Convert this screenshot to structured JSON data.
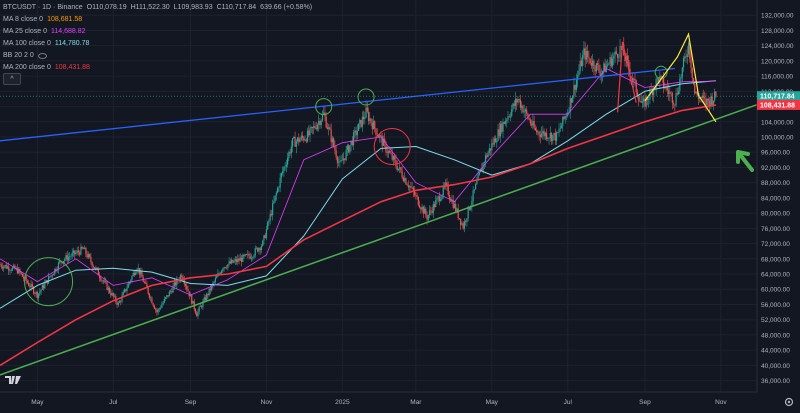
{
  "header": {
    "symbol_line": "BTCUSDT · 1D · Binance",
    "open": "O110,078.19",
    "high": "H111,522.30",
    "low": "L109,983.93",
    "close": "C110,717.84",
    "change": "639.66 (+0.58%)",
    "indicators": [
      {
        "label": "MA 8 close 0",
        "value": "108,681.58",
        "color": "#ff9800"
      },
      {
        "label": "MA 25 close 0",
        "value": "114,688.82",
        "color": "#e040fb"
      },
      {
        "label": "MA 100 close 0",
        "value": "114,780.78",
        "color": "#80deea"
      },
      {
        "label": "BB 20 2 0",
        "value": "",
        "color": "#2962ff"
      },
      {
        "label": "MA 200 close 0",
        "value": "108,431.88",
        "color": "#f23645"
      }
    ],
    "collapse_label": "^"
  },
  "price_axis": {
    "ticks": [
      "132,000.00",
      "128,000.00",
      "124,000.00",
      "120,000.00",
      "116,000.00",
      "112,000.00",
      "108,000.00",
      "104,000.00",
      "100,000.00",
      "96,000.00",
      "92,000.00",
      "88,000.00",
      "84,000.00",
      "80,000.00",
      "76,000.00",
      "72,000.00",
      "68,000.00",
      "64,000.00",
      "60,000.00",
      "56,000.00",
      "52,000.00",
      "48,000.00",
      "44,000.00",
      "40,000.00",
      "36,000.00"
    ],
    "current_price_label": "110,717.84",
    "ma200_label": "108,431.88"
  },
  "time_axis": {
    "labels": [
      "May",
      "Jul",
      "Sep",
      "Nov",
      "2025",
      "Mar",
      "May",
      "Jul",
      "Sep",
      "Nov"
    ]
  },
  "chart_data": {
    "type": "candlestick",
    "symbol": "BTCUSDT",
    "interval": "1D",
    "exchange": "Binance",
    "ylim": [
      33000,
      136000
    ],
    "x_range": [
      "2024-04-01",
      "2025-11-30"
    ],
    "price_line": 110717.84,
    "ma200_last": 108431.88,
    "close_series": [
      [
        "2024-04-01",
        66500
      ],
      [
        "2024-04-15",
        65000
      ],
      [
        "2024-05-01",
        58500
      ],
      [
        "2024-05-20",
        67500
      ],
      [
        "2024-06-07",
        70500
      ],
      [
        "2024-06-25",
        61000
      ],
      [
        "2024-07-05",
        56000
      ],
      [
        "2024-07-20",
        66000
      ],
      [
        "2024-08-05",
        54000
      ],
      [
        "2024-08-25",
        64000
      ],
      [
        "2024-09-06",
        53500
      ],
      [
        "2024-09-27",
        66000
      ],
      [
        "2024-10-20",
        69000
      ],
      [
        "2024-10-29",
        72000
      ],
      [
        "2024-11-13",
        90000
      ],
      [
        "2024-11-22",
        98500
      ],
      [
        "2024-12-05",
        100500
      ],
      [
        "2024-12-17",
        106000
      ],
      [
        "2024-12-30",
        92500
      ],
      [
        "2025-01-20",
        106500
      ],
      [
        "2025-02-05",
        97000
      ],
      [
        "2025-02-25",
        86500
      ],
      [
        "2025-03-10",
        79000
      ],
      [
        "2025-03-25",
        87000
      ],
      [
        "2025-04-08",
        76500
      ],
      [
        "2025-04-25",
        94000
      ],
      [
        "2025-05-10",
        103500
      ],
      [
        "2025-05-22",
        110000
      ],
      [
        "2025-06-05",
        101500
      ],
      [
        "2025-06-22",
        100000
      ],
      [
        "2025-07-01",
        107000
      ],
      [
        "2025-07-14",
        122000
      ],
      [
        "2025-07-28",
        117000
      ],
      [
        "2025-08-13",
        123500
      ],
      [
        "2025-08-30",
        108000
      ],
      [
        "2025-09-12",
        115500
      ],
      [
        "2025-09-25",
        109500
      ],
      [
        "2025-10-06",
        124500
      ],
      [
        "2025-10-11",
        111500
      ],
      [
        "2025-10-20",
        109000
      ],
      [
        "2025-10-28",
        110717.84
      ]
    ],
    "ma200_series": [
      [
        "2024-04-01",
        40000
      ],
      [
        "2024-05-01",
        46000
      ],
      [
        "2024-06-01",
        52000
      ],
      [
        "2024-07-01",
        57000
      ],
      [
        "2024-08-01",
        61000
      ],
      [
        "2024-09-01",
        63000
      ],
      [
        "2024-10-01",
        64000
      ],
      [
        "2024-11-01",
        66000
      ],
      [
        "2024-12-01",
        73000
      ],
      [
        "2025-01-01",
        78000
      ],
      [
        "2025-02-01",
        83000
      ],
      [
        "2025-03-01",
        86000
      ],
      [
        "2025-04-01",
        87500
      ],
      [
        "2025-05-01",
        89500
      ],
      [
        "2025-06-01",
        93000
      ],
      [
        "2025-07-01",
        97000
      ],
      [
        "2025-08-01",
        100500
      ],
      [
        "2025-09-01",
        104000
      ],
      [
        "2025-10-01",
        107000
      ],
      [
        "2025-10-28",
        108431.88
      ]
    ],
    "ma100_series": [
      [
        "2024-04-01",
        55000
      ],
      [
        "2024-05-01",
        61000
      ],
      [
        "2024-06-01",
        65000
      ],
      [
        "2024-07-01",
        65500
      ],
      [
        "2024-08-01",
        64500
      ],
      [
        "2024-09-01",
        61500
      ],
      [
        "2024-10-01",
        61000
      ],
      [
        "2024-11-01",
        63500
      ],
      [
        "2024-12-01",
        74000
      ],
      [
        "2025-01-01",
        89000
      ],
      [
        "2025-02-01",
        97000
      ],
      [
        "2025-03-01",
        97500
      ],
      [
        "2025-04-01",
        94000
      ],
      [
        "2025-05-01",
        90000
      ],
      [
        "2025-06-01",
        93000
      ],
      [
        "2025-07-01",
        99000
      ],
      [
        "2025-08-01",
        106000
      ],
      [
        "2025-09-01",
        112000
      ],
      [
        "2025-10-01",
        114000
      ],
      [
        "2025-10-28",
        114780.78
      ]
    ],
    "ma25_series": [
      [
        "2024-04-01",
        68000
      ],
      [
        "2024-05-01",
        62000
      ],
      [
        "2024-06-01",
        68000
      ],
      [
        "2024-07-01",
        61000
      ],
      [
        "2024-08-01",
        63000
      ],
      [
        "2024-09-01",
        58500
      ],
      [
        "2024-10-01",
        62500
      ],
      [
        "2024-11-01",
        69000
      ],
      [
        "2024-12-01",
        94000
      ],
      [
        "2025-01-01",
        98500
      ],
      [
        "2025-02-01",
        100000
      ],
      [
        "2025-03-01",
        88000
      ],
      [
        "2025-04-01",
        83000
      ],
      [
        "2025-05-01",
        95000
      ],
      [
        "2025-06-01",
        106000
      ],
      [
        "2025-07-01",
        106000
      ],
      [
        "2025-08-01",
        118000
      ],
      [
        "2025-09-01",
        113000
      ],
      [
        "2025-10-01",
        114500
      ],
      [
        "2025-10-28",
        114688.82
      ]
    ],
    "drawings": {
      "upper_trendline": {
        "color": "#2962ff",
        "from": [
          "2024-04-01",
          99000
        ],
        "to": [
          "2025-09-25",
          118000
        ]
      },
      "lower_trendline": {
        "color": "#4caf50",
        "from": [
          "2024-04-01",
          37500
        ],
        "to": [
          "2025-11-30",
          108500
        ]
      },
      "circles": [
        {
          "color": "#4caf50",
          "at": [
            "2024-05-10",
            62000
          ]
        },
        {
          "color": "#4caf50",
          "at": [
            "2024-12-17",
            108000
          ]
        },
        {
          "color": "#4caf50",
          "at": [
            "2025-01-20",
            110500
          ]
        },
        {
          "color": "#f23645",
          "at": [
            "2025-02-10",
            97500
          ]
        },
        {
          "color": "#4caf50",
          "at": [
            "2025-09-14",
            117000
          ]
        }
      ],
      "arrow": {
        "color": "#4caf50",
        "direction": "up-left"
      }
    }
  }
}
